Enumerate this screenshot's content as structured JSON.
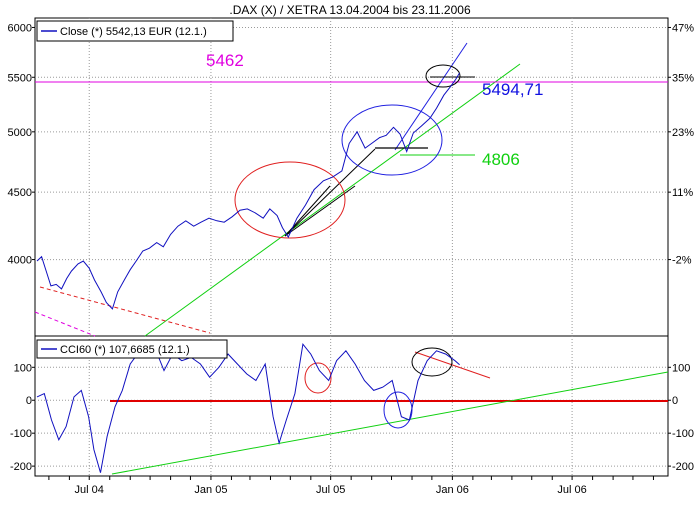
{
  "title": ".DAX (X) / XETRA 13.04.2004 bis 23.11.2006",
  "chart_data": [
    {
      "type": "line",
      "panel": "price",
      "legend": "Close (*) 5542,13 EUR (12.1.)",
      "ylim": [
        3500,
        6100
      ],
      "yticks_left": [
        "6000",
        "5500",
        "5000",
        "4500",
        "4000"
      ],
      "yticks_right": [
        "47%",
        "35%",
        "23%",
        "11%",
        "-2%"
      ],
      "series": [
        {
          "name": "Close",
          "color": "#1010c0",
          "x": [
            "2004-04-13",
            "2004-04-20",
            "2004-04-27",
            "2004-05-04",
            "2004-05-12",
            "2004-05-20",
            "2004-05-28",
            "2004-06-04",
            "2004-06-14",
            "2004-06-22",
            "2004-07-01",
            "2004-07-09",
            "2004-07-19",
            "2004-07-27",
            "2004-08-05",
            "2004-08-13",
            "2004-08-23",
            "2004-09-01",
            "2004-09-10",
            "2004-09-20",
            "2004-09-30",
            "2004-10-11",
            "2004-10-21",
            "2004-11-01",
            "2004-11-12",
            "2004-11-24",
            "2004-12-06",
            "2004-12-17",
            "2004-12-29",
            "2005-01-10",
            "2005-01-21",
            "2005-02-02",
            "2005-02-14",
            "2005-02-25",
            "2005-03-09",
            "2005-03-21",
            "2005-03-31",
            "2005-04-11",
            "2005-04-19",
            "2005-04-28",
            "2005-05-11",
            "2005-05-24",
            "2005-06-06",
            "2005-06-20",
            "2005-07-04",
            "2005-07-18",
            "2005-07-29",
            "2005-08-10",
            "2005-08-22",
            "2005-09-01",
            "2005-09-13",
            "2005-09-23",
            "2005-10-04",
            "2005-10-14",
            "2005-10-24",
            "2005-11-03",
            "2005-11-15",
            "2005-11-28",
            "2005-12-08",
            "2005-12-19",
            "2005-12-29",
            "2006-01-06",
            "2006-01-12"
          ],
          "y": [
            3990,
            4020,
            3920,
            3820,
            3830,
            3800,
            3870,
            3920,
            3970,
            3990,
            3940,
            3860,
            3780,
            3710,
            3670,
            3780,
            3860,
            3930,
            3990,
            4060,
            4080,
            4120,
            4090,
            4180,
            4240,
            4280,
            4240,
            4270,
            4300,
            4280,
            4270,
            4310,
            4360,
            4370,
            4340,
            4300,
            4370,
            4320,
            4230,
            4160,
            4300,
            4400,
            4520,
            4590,
            4620,
            4670,
            4900,
            5000,
            4860,
            4900,
            4950,
            4970,
            5040,
            4980,
            4830,
            4990,
            5050,
            5120,
            5210,
            5330,
            5410,
            5480,
            5542
          ]
        }
      ],
      "annotations": [
        "5462",
        "5494,71",
        "4806"
      ]
    },
    {
      "type": "line",
      "panel": "oscillator",
      "legend": "CCI60 (*) 107,6685 (12.1.)",
      "ylim": [
        -230,
        195
      ],
      "yticks_left": [
        "100",
        "0",
        "-100",
        "-200"
      ],
      "yticks_right": [
        "100",
        "0",
        "-100",
        "-200"
      ],
      "xticks": [
        "Jul 04",
        "Jan 05",
        "Jul 05",
        "Jan 06",
        "Jul 06"
      ],
      "series": [
        {
          "name": "CCI60",
          "color": "#1010c0",
          "x": [
            "2004-04-13",
            "2004-04-24",
            "2004-05-05",
            "2004-05-16",
            "2004-05-27",
            "2004-06-08",
            "2004-06-19",
            "2004-06-30",
            "2004-07-08",
            "2004-07-18",
            "2004-07-28",
            "2004-08-09",
            "2004-08-20",
            "2004-09-01",
            "2004-09-12",
            "2004-09-25",
            "2004-10-08",
            "2004-10-22",
            "2004-11-04",
            "2004-11-18",
            "2004-12-02",
            "2004-12-16",
            "2004-12-30",
            "2005-01-13",
            "2005-01-27",
            "2005-02-10",
            "2005-02-24",
            "2005-03-10",
            "2005-03-24",
            "2005-04-05",
            "2005-04-14",
            "2005-04-25",
            "2005-05-08",
            "2005-05-20",
            "2005-06-01",
            "2005-06-14",
            "2005-06-28",
            "2005-07-10",
            "2005-07-24",
            "2005-08-07",
            "2005-08-21",
            "2005-09-04",
            "2005-09-18",
            "2005-10-02",
            "2005-10-16",
            "2005-10-28",
            "2005-11-10",
            "2005-11-24",
            "2005-12-08",
            "2005-12-22",
            "2006-01-05",
            "2006-01-12"
          ],
          "y": [
            10,
            20,
            -60,
            -120,
            -80,
            10,
            30,
            -50,
            -150,
            -220,
            -110,
            -20,
            30,
            110,
            140,
            150,
            160,
            90,
            140,
            120,
            130,
            110,
            70,
            100,
            140,
            110,
            80,
            60,
            110,
            -50,
            -130,
            -60,
            20,
            170,
            140,
            90,
            60,
            120,
            150,
            110,
            60,
            30,
            40,
            60,
            -50,
            -60,
            60,
            120,
            150,
            140,
            120,
            108
          ]
        }
      ]
    }
  ]
}
